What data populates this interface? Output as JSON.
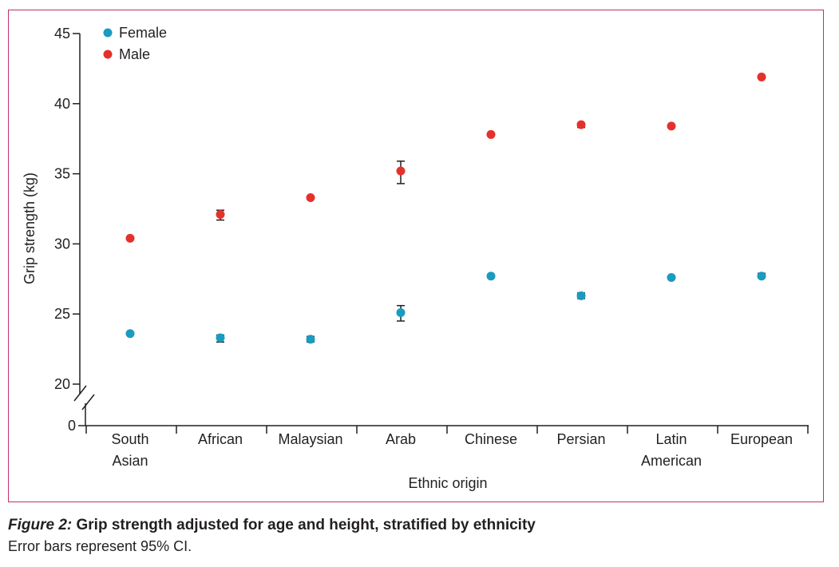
{
  "colors": {
    "frame": "#c0306e",
    "female": "#1a9bc0",
    "male": "#e5312b",
    "axis": "#231f20"
  },
  "chart_data": {
    "type": "scatter",
    "categories": [
      [
        "South",
        "Asian"
      ],
      [
        "African"
      ],
      [
        "Malaysian"
      ],
      [
        "Arab"
      ],
      [
        "Chinese"
      ],
      [
        "Persian"
      ],
      [
        "Latin",
        "American"
      ],
      [
        "European"
      ]
    ],
    "xlabel": "Ethnic origin",
    "ylabel": "Grip strength (kg)",
    "ylim": [
      20,
      45
    ],
    "yticks": [
      20,
      25,
      30,
      35,
      40,
      45
    ],
    "ybreak_label": "0",
    "axis_break": true,
    "grid": false,
    "legend_placement": "top-left",
    "series": [
      {
        "name": "Female",
        "color": "#1a9bc0",
        "values": [
          23.6,
          23.3,
          23.2,
          25.1,
          27.7,
          26.3,
          27.6,
          27.7
        ],
        "ci_low": [
          23.5,
          23.0,
          23.0,
          24.5,
          27.6,
          26.1,
          27.5,
          27.6
        ],
        "ci_high": [
          23.7,
          23.5,
          23.4,
          25.6,
          27.8,
          26.5,
          27.7,
          27.9
        ]
      },
      {
        "name": "Male",
        "color": "#e5312b",
        "values": [
          30.4,
          32.1,
          33.3,
          35.2,
          37.8,
          38.5,
          38.4,
          41.9
        ],
        "ci_low": [
          30.3,
          31.7,
          33.2,
          34.3,
          37.7,
          38.3,
          38.3,
          41.8
        ],
        "ci_high": [
          30.5,
          32.4,
          33.4,
          35.9,
          37.9,
          38.6,
          38.5,
          42.0
        ]
      }
    ]
  },
  "caption": {
    "label": "Figure 2:",
    "title": " Grip strength adjusted for age and height, stratified by ethnicity",
    "note": "Error bars represent 95% CI."
  }
}
